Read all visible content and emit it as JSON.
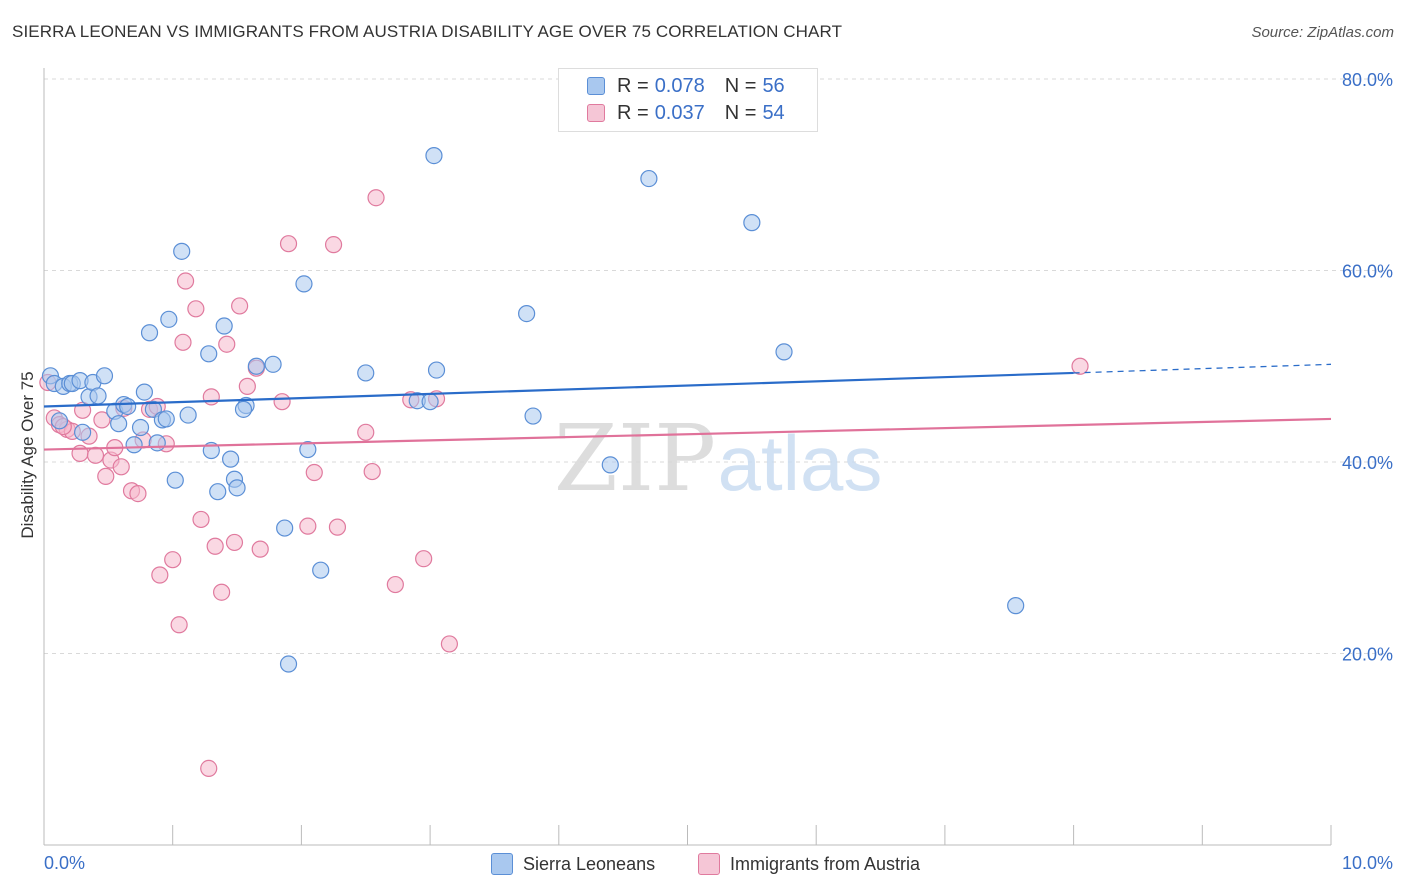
{
  "title": "SIERRA LEONEAN VS IMMIGRANTS FROM AUSTRIA DISABILITY AGE OVER 75 CORRELATION CHART",
  "source": "Source: ZipAtlas.com",
  "watermark": {
    "zip": "ZIP",
    "atlas": "atlas"
  },
  "legend": {
    "r_label": "R =",
    "n_label": "N =",
    "items": [
      {
        "r": "0.078",
        "n": "56"
      },
      {
        "r": "0.037",
        "n": "54"
      }
    ]
  },
  "colors": {
    "blue_fill": "#a9c8ef",
    "blue_stroke": "#5b8fd6",
    "blue_line": "#2a6cc9",
    "pink_fill": "#f5b8cc",
    "pink_stroke": "#e07a9e",
    "pink_line": "#e0729a",
    "tick_label": "#3a6fc7",
    "grid": "#d9d9d9"
  },
  "chart_data": {
    "type": "scatter",
    "title": "SIERRA LEONEAN VS IMMIGRANTS FROM AUSTRIA DISABILITY AGE OVER 75 CORRELATION CHART",
    "xlabel": "",
    "ylabel": "Disability Age Over 75",
    "xlim": [
      0,
      10
    ],
    "ylim": [
      0,
      80
    ],
    "x_tick_labels": [
      "0.0%",
      "10.0%"
    ],
    "y_ticks": [
      20,
      40,
      60,
      80
    ],
    "y_tick_labels": [
      "20.0%",
      "40.0%",
      "60.0%",
      "80.0%"
    ],
    "grid": true,
    "legend_position": "bottom",
    "series": [
      {
        "name": "Sierra Leoneans",
        "trend": {
          "x0": 0.0,
          "y0": 45.8,
          "x1": 8.0,
          "y1": 49.3,
          "dash_to_x": 10.0,
          "dash_to_y": 50.2
        },
        "points": [
          [
            0.05,
            49.0
          ],
          [
            0.08,
            48.2
          ],
          [
            0.12,
            44.3
          ],
          [
            0.15,
            47.9
          ],
          [
            0.2,
            48.2
          ],
          [
            0.22,
            48.2
          ],
          [
            0.28,
            48.5
          ],
          [
            0.3,
            43.1
          ],
          [
            0.35,
            46.8
          ],
          [
            0.38,
            48.3
          ],
          [
            0.42,
            46.9
          ],
          [
            0.47,
            49.0
          ],
          [
            0.55,
            45.3
          ],
          [
            0.58,
            44.0
          ],
          [
            0.62,
            46.0
          ],
          [
            0.65,
            45.8
          ],
          [
            0.7,
            41.8
          ],
          [
            0.75,
            43.6
          ],
          [
            0.78,
            47.3
          ],
          [
            0.82,
            53.5
          ],
          [
            0.85,
            45.5
          ],
          [
            0.88,
            42.0
          ],
          [
            0.92,
            44.4
          ],
          [
            0.97,
            54.9
          ],
          [
            1.02,
            38.1
          ],
          [
            1.07,
            62.0
          ],
          [
            1.12,
            44.9
          ],
          [
            1.28,
            51.3
          ],
          [
            1.3,
            41.2
          ],
          [
            1.35,
            36.9
          ],
          [
            1.4,
            54.2
          ],
          [
            1.45,
            40.3
          ],
          [
            1.48,
            38.2
          ],
          [
            1.5,
            37.3
          ],
          [
            1.57,
            45.9
          ],
          [
            1.65,
            50.0
          ],
          [
            1.78,
            50.2
          ],
          [
            1.87,
            33.1
          ],
          [
            1.9,
            18.9
          ],
          [
            2.02,
            58.6
          ],
          [
            2.05,
            41.3
          ],
          [
            2.15,
            28.7
          ],
          [
            2.5,
            49.3
          ],
          [
            2.9,
            46.4
          ],
          [
            3.0,
            46.3
          ],
          [
            3.03,
            72.0
          ],
          [
            3.05,
            49.6
          ],
          [
            3.8,
            44.8
          ],
          [
            3.75,
            55.5
          ],
          [
            4.4,
            39.7
          ],
          [
            4.7,
            69.6
          ],
          [
            5.5,
            65.0
          ],
          [
            5.75,
            51.5
          ],
          [
            7.55,
            25.0
          ],
          [
            0.95,
            44.5
          ],
          [
            1.55,
            45.5
          ]
        ]
      },
      {
        "name": "Immigrants from Austria",
        "trend": {
          "x0": 0.0,
          "y0": 41.3,
          "x1": 10.0,
          "y1": 44.5
        },
        "points": [
          [
            0.03,
            48.3
          ],
          [
            0.08,
            44.6
          ],
          [
            0.12,
            43.9
          ],
          [
            0.18,
            43.4
          ],
          [
            0.22,
            43.2
          ],
          [
            0.28,
            40.9
          ],
          [
            0.3,
            45.4
          ],
          [
            0.35,
            42.7
          ],
          [
            0.4,
            40.7
          ],
          [
            0.45,
            44.4
          ],
          [
            0.48,
            38.5
          ],
          [
            0.52,
            40.2
          ],
          [
            0.55,
            41.5
          ],
          [
            0.6,
            39.5
          ],
          [
            0.62,
            45.6
          ],
          [
            0.68,
            37.0
          ],
          [
            0.73,
            36.7
          ],
          [
            0.77,
            42.3
          ],
          [
            0.82,
            45.5
          ],
          [
            0.88,
            45.8
          ],
          [
            0.9,
            28.2
          ],
          [
            0.95,
            41.9
          ],
          [
            1.0,
            29.8
          ],
          [
            1.05,
            23.0
          ],
          [
            1.08,
            52.5
          ],
          [
            1.1,
            58.9
          ],
          [
            1.18,
            56.0
          ],
          [
            1.22,
            34.0
          ],
          [
            1.28,
            8.0
          ],
          [
            1.3,
            46.8
          ],
          [
            1.33,
            31.2
          ],
          [
            1.38,
            26.4
          ],
          [
            1.42,
            52.3
          ],
          [
            1.48,
            31.6
          ],
          [
            1.52,
            56.3
          ],
          [
            1.58,
            47.9
          ],
          [
            1.65,
            49.8
          ],
          [
            1.68,
            30.9
          ],
          [
            1.85,
            46.3
          ],
          [
            1.9,
            62.8
          ],
          [
            2.05,
            33.3
          ],
          [
            2.1,
            38.9
          ],
          [
            2.25,
            62.7
          ],
          [
            2.28,
            33.2
          ],
          [
            2.5,
            43.1
          ],
          [
            2.55,
            39.0
          ],
          [
            2.58,
            67.6
          ],
          [
            2.73,
            27.2
          ],
          [
            2.85,
            46.5
          ],
          [
            2.95,
            29.9
          ],
          [
            3.05,
            46.6
          ],
          [
            3.15,
            21.0
          ],
          [
            8.05,
            50.0
          ],
          [
            0.15,
            43.7
          ]
        ]
      }
    ]
  }
}
